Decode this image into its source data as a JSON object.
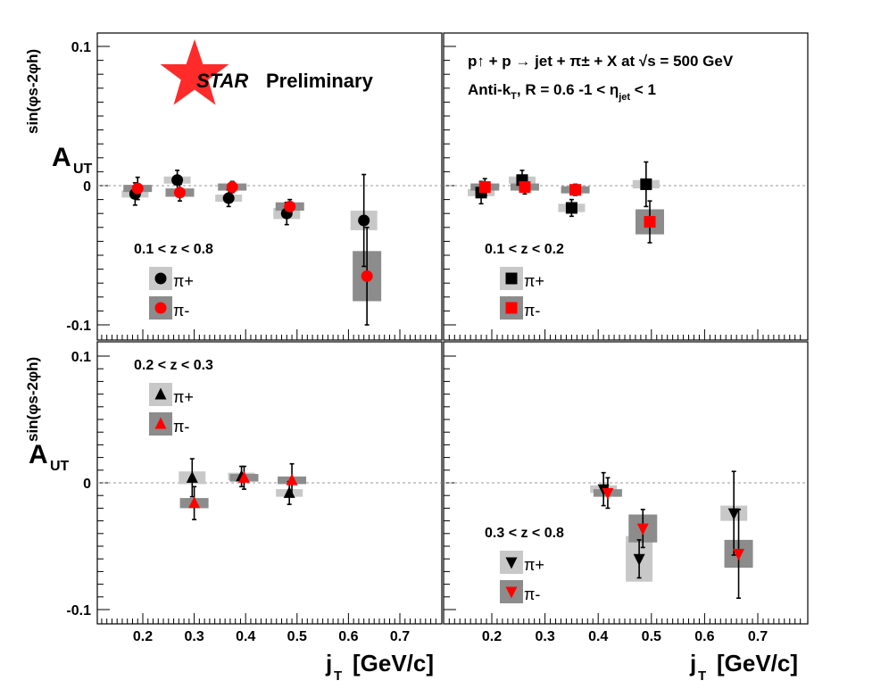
{
  "logo": {
    "star_text": "STAR",
    "label": "Preliminary",
    "star_color": "#ff2a2a",
    "text_color": "#2b2b8f"
  },
  "title": {
    "line1": "p↑ + p → jet + π± + X at √s = 500 GeV",
    "line2_a": "Anti-k",
    "line2_b": "T",
    "line2_c": ", R = 0.6    -1 < η",
    "line2_d": "jet",
    "line2_e": " < 1"
  },
  "axes": {
    "ylabel_main": "A",
    "ylabel_sub": "UT",
    "ylabel_sup": "sin(φs-2φh)",
    "xlabel_main": "j",
    "xlabel_sub": "T",
    "xlabel_units": "[GeV/c]",
    "x_ticks": [
      "0.2",
      "0.3",
      "0.4",
      "0.5",
      "0.6",
      "0.7"
    ],
    "y_ticks_top": [
      "0.1",
      "0",
      "-0.1"
    ],
    "y_ticks_bottom": [
      "0.1",
      "0",
      "-0.1"
    ]
  },
  "colors": {
    "positive": "#000000",
    "negative": "#ff0000",
    "sys_positive": "#c8c8c8",
    "sys_negative": "#8c8c8c",
    "zero_line": "#999999"
  },
  "chart_data": [
    {
      "type": "scatter",
      "panel": "top-left",
      "z_range": "0.1 < z < 0.8",
      "marker": "circle",
      "xlim": [
        0.12,
        0.78
      ],
      "ylim": [
        -0.105,
        0.105
      ],
      "xlabel": "j_T [GeV/c]",
      "ylabel": "A_UT^sin(φs-2φh)",
      "legend_placement": "bottom-left",
      "series": [
        {
          "name": "π+",
          "points": [
            {
              "x": 0.185,
              "y": -0.006,
              "err": 0.008,
              "sys": 0.002
            },
            {
              "x": 0.267,
              "y": 0.004,
              "err": 0.007,
              "sys": 0.002
            },
            {
              "x": 0.367,
              "y": -0.009,
              "err": 0.006,
              "sys": 0.002
            },
            {
              "x": 0.48,
              "y": -0.02,
              "err": 0.008,
              "sys": 0.004
            },
            {
              "x": 0.63,
              "y": -0.025,
              "err": 0.033,
              "sys": 0.007
            }
          ]
        },
        {
          "name": "π-",
          "points": [
            {
              "x": 0.19,
              "y": -0.002,
              "err": 0.008,
              "sys": 0.002
            },
            {
              "x": 0.272,
              "y": -0.005,
              "err": 0.006,
              "sys": 0.003
            },
            {
              "x": 0.374,
              "y": -0.001,
              "err": 0.004,
              "sys": 0.002
            },
            {
              "x": 0.486,
              "y": -0.015,
              "err": 0.005,
              "sys": 0.003
            },
            {
              "x": 0.636,
              "y": -0.065,
              "err": 0.035,
              "sys": 0.018
            }
          ]
        }
      ]
    },
    {
      "type": "scatter",
      "panel": "top-right",
      "z_range": "0.1 < z < 0.2",
      "marker": "square",
      "xlim": [
        0.12,
        0.78
      ],
      "ylim": [
        -0.105,
        0.105
      ],
      "xlabel": "j_T [GeV/c]",
      "legend_placement": "bottom-left",
      "series": [
        {
          "name": "π+",
          "points": [
            {
              "x": 0.18,
              "y": -0.005,
              "err": 0.008,
              "sys": 0.002
            },
            {
              "x": 0.257,
              "y": 0.004,
              "err": 0.007,
              "sys": 0.002
            },
            {
              "x": 0.35,
              "y": -0.016,
              "err": 0.006,
              "sys": 0.003
            },
            {
              "x": 0.49,
              "y": 0.001,
              "err": 0.016,
              "sys": 0.003
            }
          ]
        },
        {
          "name": "π-",
          "points": [
            {
              "x": 0.187,
              "y": -0.001,
              "err": 0.006,
              "sys": 0.002
            },
            {
              "x": 0.262,
              "y": -0.001,
              "err": 0.005,
              "sys": 0.002
            },
            {
              "x": 0.357,
              "y": -0.003,
              "err": 0.004,
              "sys": 0.002
            },
            {
              "x": 0.497,
              "y": -0.026,
              "err": 0.015,
              "sys": 0.009
            }
          ]
        }
      ]
    },
    {
      "type": "scatter",
      "panel": "bottom-left",
      "z_range": "0.2 < z < 0.3",
      "marker": "triangle-up",
      "xlim": [
        0.12,
        0.78
      ],
      "ylim": [
        -0.105,
        0.105
      ],
      "xlabel": "j_T [GeV/c]",
      "ylabel": "A_UT^sin(φs-2φh)",
      "legend_placement": "top-left",
      "series": [
        {
          "name": "π+",
          "points": [
            {
              "x": 0.296,
              "y": 0.004,
              "err": 0.015,
              "sys": 0.005
            },
            {
              "x": 0.392,
              "y": 0.005,
              "err": 0.008,
              "sys": 0.003
            },
            {
              "x": 0.485,
              "y": -0.008,
              "err": 0.009,
              "sys": 0.003
            }
          ]
        },
        {
          "name": "π-",
          "points": [
            {
              "x": 0.3,
              "y": -0.016,
              "err": 0.013,
              "sys": 0.004
            },
            {
              "x": 0.397,
              "y": 0.004,
              "err": 0.009,
              "sys": 0.003
            },
            {
              "x": 0.49,
              "y": 0.002,
              "err": 0.013,
              "sys": 0.003
            }
          ]
        }
      ]
    },
    {
      "type": "scatter",
      "panel": "bottom-right",
      "z_range": "0.3 < z < 0.8",
      "marker": "triangle-down",
      "xlim": [
        0.12,
        0.78
      ],
      "ylim": [
        -0.105,
        0.105
      ],
      "xlabel": "j_T [GeV/c]",
      "legend_placement": "bottom-left",
      "series": [
        {
          "name": "π+",
          "points": [
            {
              "x": 0.41,
              "y": -0.005,
              "err": 0.013,
              "sys": 0.003
            },
            {
              "x": 0.477,
              "y": -0.06,
              "err": 0.015,
              "sys": 0.018
            },
            {
              "x": 0.655,
              "y": -0.024,
              "err": 0.033,
              "sys": 0.006
            }
          ]
        },
        {
          "name": "π-",
          "points": [
            {
              "x": 0.418,
              "y": -0.008,
              "err": 0.012,
              "sys": 0.003
            },
            {
              "x": 0.484,
              "y": -0.036,
              "err": 0.015,
              "sys": 0.011
            },
            {
              "x": 0.664,
              "y": -0.056,
              "err": 0.035,
              "sys": 0.011
            }
          ]
        }
      ]
    }
  ]
}
